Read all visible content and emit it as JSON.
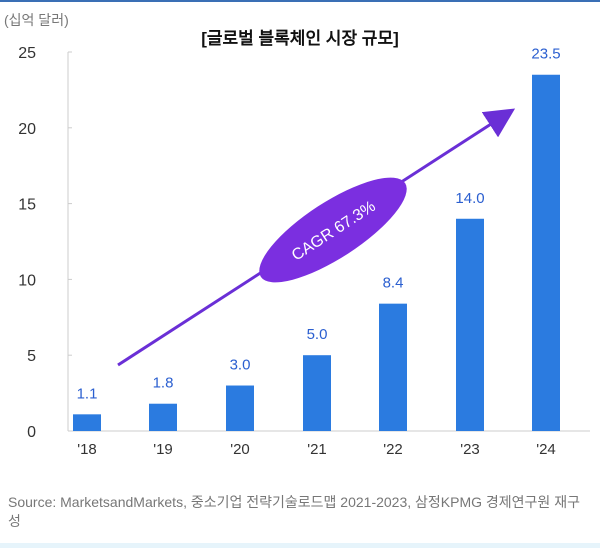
{
  "chart_data": {
    "type": "bar",
    "title": "[글로벌 블록체인 시장 규모]",
    "ylabel": "(십억 달러)",
    "xlabel": "",
    "categories": [
      "'18",
      "'19",
      "'20",
      "'21",
      "'22",
      "'23",
      "'24"
    ],
    "values": [
      1.1,
      1.8,
      3.0,
      5.0,
      8.4,
      14.0,
      23.5
    ],
    "value_labels": [
      "1.1",
      "1.8",
      "3.0",
      "5.0",
      "8.4",
      "14.0",
      "23.5"
    ],
    "ylim": [
      0,
      25
    ],
    "yticks": [
      "0",
      "5",
      "10",
      "15",
      "20",
      "25"
    ],
    "grid": false,
    "annotation": "CAGR 67.3%",
    "source": "Source: MarketsandMarkets, 중소기업 전략기술로드맵 2021-2023, 삼정KPMG 경제연구원 재구성",
    "colors": {
      "bar": "#2b7be0",
      "label": "#2b5fd0",
      "arrow": "#6a2fd6",
      "ellipse": "#7b2fe0"
    }
  }
}
